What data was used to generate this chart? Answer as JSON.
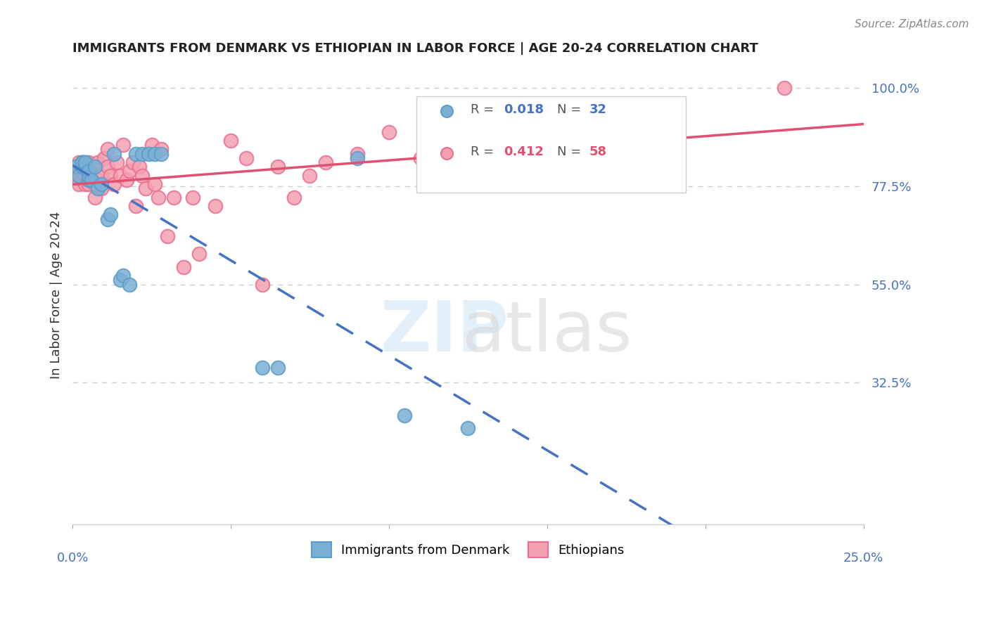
{
  "title": "IMMIGRANTS FROM DENMARK VS ETHIOPIAN IN LABOR FORCE | AGE 20-24 CORRELATION CHART",
  "source": "Source: ZipAtlas.com",
  "ylabel": "In Labor Force | Age 20-24",
  "ytick_labels": [
    "100.0%",
    "77.5%",
    "55.0%",
    "32.5%"
  ],
  "ytick_values": [
    1.0,
    0.775,
    0.55,
    0.325
  ],
  "xlim": [
    0.0,
    0.25
  ],
  "ylim": [
    0.0,
    1.05
  ],
  "background_color": "#ffffff",
  "denmark_color": "#7bafd4",
  "denmark_edge_color": "#5b9ec9",
  "ethiopia_color": "#f4a0b0",
  "ethiopia_edge_color": "#e87090",
  "watermark_zip": "ZIP",
  "watermark_atlas": "atlas",
  "denmark_x": [
    0.001,
    0.002,
    0.003,
    0.003,
    0.003,
    0.003,
    0.004,
    0.004,
    0.004,
    0.005,
    0.005,
    0.005,
    0.006,
    0.007,
    0.008,
    0.009,
    0.011,
    0.012,
    0.013,
    0.015,
    0.016,
    0.018,
    0.02,
    0.022,
    0.024,
    0.026,
    0.028,
    0.06,
    0.065,
    0.09,
    0.105,
    0.125
  ],
  "denmark_y": [
    0.82,
    0.8,
    0.82,
    0.83,
    0.83,
    0.83,
    0.82,
    0.83,
    0.83,
    0.79,
    0.8,
    0.81,
    0.79,
    0.82,
    0.77,
    0.78,
    0.7,
    0.71,
    0.85,
    0.56,
    0.57,
    0.55,
    0.85,
    0.85,
    0.85,
    0.85,
    0.85,
    0.36,
    0.36,
    0.84,
    0.25,
    0.22
  ],
  "ethiopia_x": [
    0.001,
    0.001,
    0.002,
    0.002,
    0.002,
    0.003,
    0.003,
    0.003,
    0.004,
    0.004,
    0.005,
    0.005,
    0.005,
    0.006,
    0.007,
    0.007,
    0.008,
    0.008,
    0.009,
    0.009,
    0.01,
    0.011,
    0.011,
    0.012,
    0.013,
    0.014,
    0.015,
    0.016,
    0.017,
    0.018,
    0.019,
    0.02,
    0.021,
    0.022,
    0.023,
    0.025,
    0.026,
    0.027,
    0.028,
    0.03,
    0.032,
    0.035,
    0.038,
    0.04,
    0.045,
    0.05,
    0.055,
    0.06,
    0.065,
    0.07,
    0.075,
    0.08,
    0.09,
    0.1,
    0.11,
    0.13,
    0.175,
    0.225
  ],
  "ethiopia_y": [
    0.82,
    0.8,
    0.78,
    0.8,
    0.83,
    0.79,
    0.81,
    0.83,
    0.78,
    0.8,
    0.83,
    0.8,
    0.78,
    0.8,
    0.75,
    0.78,
    0.79,
    0.83,
    0.77,
    0.8,
    0.84,
    0.82,
    0.86,
    0.8,
    0.78,
    0.83,
    0.8,
    0.87,
    0.79,
    0.81,
    0.83,
    0.73,
    0.82,
    0.8,
    0.77,
    0.87,
    0.78,
    0.75,
    0.86,
    0.66,
    0.75,
    0.59,
    0.75,
    0.62,
    0.73,
    0.88,
    0.84,
    0.55,
    0.82,
    0.75,
    0.8,
    0.83,
    0.85,
    0.9,
    0.84,
    0.78,
    0.95,
    1.0
  ],
  "gridline_color": "#cccccc",
  "denmark_line_color": "#4472c4",
  "ethiopia_line_color": "#e05070",
  "tick_color": "#4472c4",
  "axis_label_color": "#333333",
  "title_color": "#222222"
}
